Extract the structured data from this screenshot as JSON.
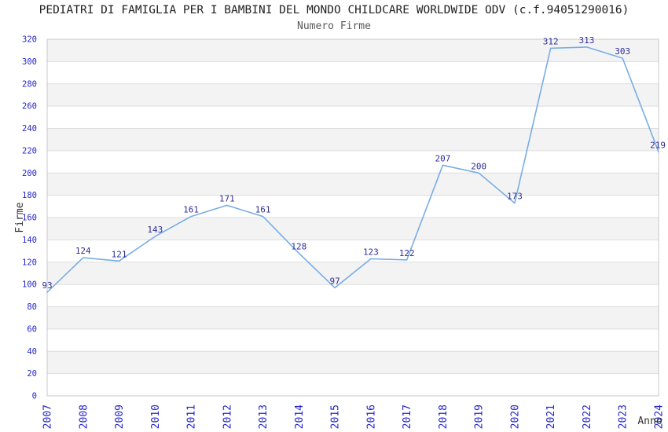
{
  "chart_data": {
    "type": "line",
    "title": "PEDIATRI DI FAMIGLIA PER I BAMBINI DEL MONDO CHILDCARE WORLDWIDE ODV (c.f.94051290016)",
    "subtitle": "Numero Firme",
    "xlabel": "Anno",
    "ylabel": "Firme",
    "categories": [
      "2007",
      "2008",
      "2009",
      "2010",
      "2011",
      "2012",
      "2013",
      "2014",
      "2015",
      "2016",
      "2017",
      "2018",
      "2019",
      "2020",
      "2021",
      "2022",
      "2023",
      "2024"
    ],
    "values": [
      93,
      124,
      121,
      143,
      161,
      171,
      161,
      128,
      97,
      123,
      122,
      207,
      200,
      173,
      312,
      313,
      303,
      219
    ],
    "ylim": [
      0,
      320
    ],
    "ytick_step": 20,
    "grid": true,
    "legend_position": "none",
    "colors": {
      "line": "#79ade3",
      "value_label": "#2e2e99",
      "tick": "#2424cc",
      "band": "#f3f3f4",
      "grid": "#dedede",
      "border": "#c8c8c8",
      "title": "#222222",
      "subtitle": "#595959",
      "axis_label": "#333333"
    }
  }
}
